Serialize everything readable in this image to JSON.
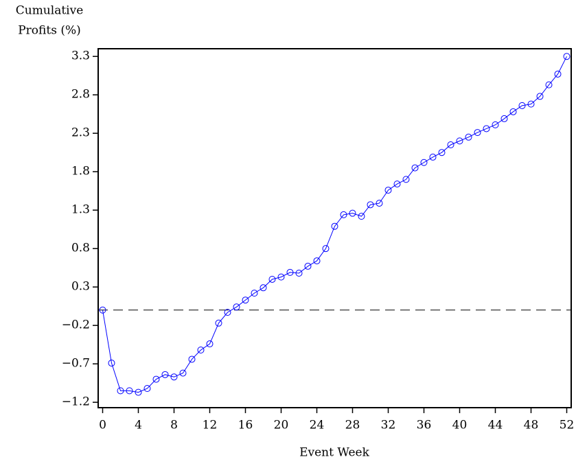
{
  "chart_data": {
    "type": "line",
    "ylabel": [
      "Cumulative",
      "Profits (%)"
    ],
    "xlabel": "Event Week",
    "x": [
      0,
      1,
      2,
      3,
      4,
      5,
      6,
      7,
      8,
      9,
      10,
      11,
      12,
      13,
      14,
      15,
      16,
      17,
      18,
      19,
      20,
      21,
      22,
      23,
      24,
      25,
      26,
      27,
      28,
      29,
      30,
      31,
      32,
      33,
      34,
      35,
      36,
      37,
      38,
      39,
      40,
      41,
      42,
      43,
      44,
      45,
      46,
      47,
      48,
      49,
      50,
      51,
      52
    ],
    "series": [
      {
        "name": "Cumulative Profits",
        "color": "#0000ff",
        "values": [
          0,
          -0.69,
          -1.05,
          -1.05,
          -1.07,
          -1.02,
          -0.9,
          -0.84,
          -0.87,
          -0.82,
          -0.64,
          -0.52,
          -0.44,
          -0.17,
          -0.03,
          0.04,
          0.13,
          0.22,
          0.29,
          0.4,
          0.43,
          0.49,
          0.48,
          0.57,
          0.64,
          0.8,
          1.09,
          1.24,
          1.26,
          1.22,
          1.37,
          1.39,
          1.56,
          1.64,
          1.7,
          1.85,
          1.92,
          1.99,
          2.05,
          2.15,
          2.2,
          2.25,
          2.31,
          2.36,
          2.41,
          2.49,
          2.58,
          2.66,
          2.68,
          2.78,
          2.93,
          3.07,
          3.3
        ]
      }
    ],
    "xlim": [
      -0.5,
      52.5
    ],
    "xticks": [
      0,
      4,
      8,
      12,
      16,
      20,
      24,
      28,
      32,
      36,
      40,
      44,
      48,
      52
    ],
    "ylim": [
      -1.27,
      3.4
    ],
    "yticks": [
      {
        "value": -1.2,
        "label": "−1.2"
      },
      {
        "value": -0.7,
        "label": "−0.7"
      },
      {
        "value": -0.2,
        "label": "−0.2"
      },
      0.3,
      0.8,
      1.3,
      1.8,
      2.3,
      2.8,
      3.3
    ],
    "reference_line": 0,
    "markers": "open-circle"
  }
}
